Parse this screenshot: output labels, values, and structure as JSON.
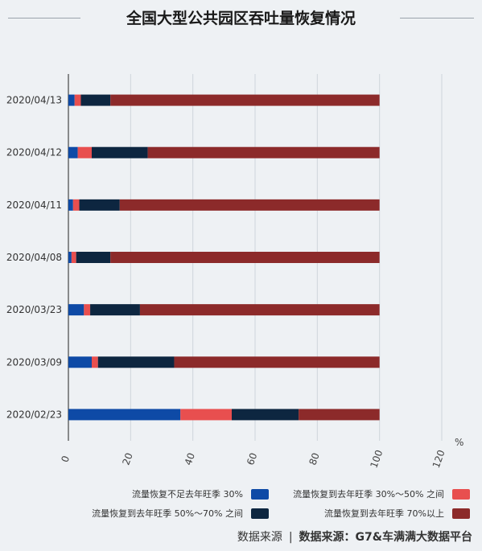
{
  "title": "全国大型公共园区吞吐量恢复情况",
  "source": {
    "label": "数据来源",
    "separator": "|",
    "text": "数据来源：G7&车满满大数据平台"
  },
  "chart_data": {
    "type": "bar",
    "orientation": "horizontal",
    "stacked": true,
    "categories": [
      "2020/04/13",
      "2020/04/12",
      "2020/04/11",
      "2020/04/08",
      "2020/03/23",
      "2020/03/09",
      "2020/02/23"
    ],
    "series": [
      {
        "name": "流量恢复不足去年旺季 30%",
        "color": "#0e4aa6",
        "values": [
          2,
          3,
          1.5,
          1,
          5,
          7.5,
          36
        ]
      },
      {
        "name": "流量恢复到去年旺季 30%～50% 之间",
        "color": "#e84f4f",
        "values": [
          2,
          4.5,
          2,
          1.5,
          2,
          2,
          16.5
        ]
      },
      {
        "name": "流量恢复到去年旺季 50%～70% 之间",
        "color": "#0d2640",
        "values": [
          9.5,
          18,
          13,
          11,
          16,
          24.5,
          21.5
        ]
      },
      {
        "name": "流量恢复到去年旺季 70%以上",
        "color": "#8c2a2a",
        "values": [
          86.5,
          74.5,
          83.5,
          86.5,
          77,
          66,
          26
        ]
      }
    ],
    "xlim": [
      0,
      120
    ],
    "xticks": [
      0,
      20,
      40,
      60,
      80,
      100,
      120
    ],
    "unit": "%",
    "grid": true,
    "legend_position": "bottom-right"
  }
}
